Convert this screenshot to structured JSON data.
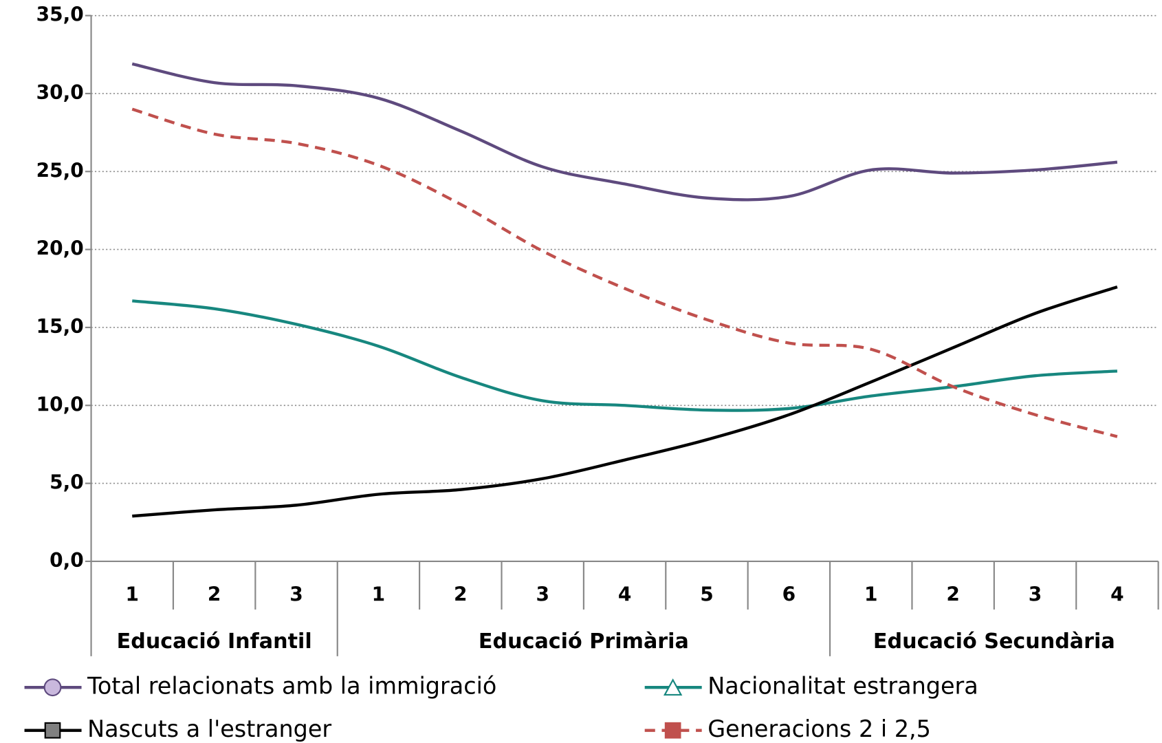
{
  "chart_data": {
    "type": "line",
    "category_groups": [
      {
        "name": "Educació Infantil",
        "categories": [
          "1",
          "2",
          "3"
        ]
      },
      {
        "name": "Educació Primària",
        "categories": [
          "1",
          "2",
          "3",
          "4",
          "5",
          "6"
        ]
      },
      {
        "name": "Educació Secundària",
        "categories": [
          "1",
          "2",
          "3",
          "4"
        ]
      }
    ],
    "series": [
      {
        "name": "Total relacionats amb la immigració",
        "color": "#5e4a7e",
        "marker": "circle",
        "marker_fill": "#c9b8dd",
        "dashed": false,
        "values": [
          31.9,
          30.7,
          30.5,
          29.7,
          27.6,
          25.3,
          24.2,
          23.3,
          23.4,
          25.1,
          24.9,
          25.1,
          25.6
        ]
      },
      {
        "name": "Nacionalitat estrangera",
        "color": "#17877f",
        "marker": "triangle",
        "marker_fill": "#ffffff",
        "dashed": false,
        "values": [
          16.7,
          16.2,
          15.2,
          13.8,
          11.8,
          10.3,
          10.0,
          9.7,
          9.8,
          10.6,
          11.2,
          11.9,
          12.2
        ]
      },
      {
        "name": "Nascuts a l'estranger",
        "color": "#000000",
        "marker": "square",
        "marker_fill": "#808080",
        "dashed": false,
        "values": [
          2.9,
          3.3,
          3.6,
          4.3,
          4.6,
          5.3,
          6.5,
          7.8,
          9.4,
          11.5,
          13.7,
          15.9,
          17.6
        ]
      },
      {
        "name": "Generacions 2 i 2,5",
        "color": "#c0504d",
        "marker": "square",
        "marker_fill": "#c0504d",
        "dashed": true,
        "values": [
          29.0,
          27.4,
          26.8,
          25.4,
          22.9,
          19.9,
          17.5,
          15.5,
          14.0,
          13.6,
          11.2,
          9.4,
          8.0
        ]
      }
    ],
    "ylim": [
      0,
      35
    ],
    "yticks": [
      {
        "value": 0,
        "label": "0,0"
      },
      {
        "value": 5,
        "label": "5,0"
      },
      {
        "value": 10,
        "label": "10,0"
      },
      {
        "value": 15,
        "label": "15,0"
      },
      {
        "value": 20,
        "label": "20,0"
      },
      {
        "value": 25,
        "label": "25,0"
      },
      {
        "value": 30,
        "label": "30,0"
      },
      {
        "value": 35,
        "label": "35,0"
      }
    ],
    "grid": true
  }
}
